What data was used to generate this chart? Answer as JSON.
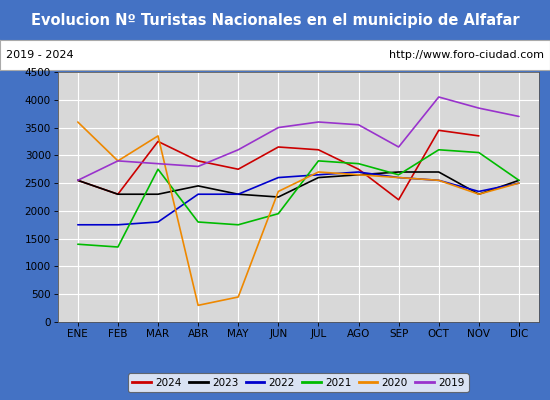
{
  "title": "Evolucion Nº Turistas Nacionales en el municipio de Alfafar",
  "subtitle_left": "2019 - 2024",
  "subtitle_right": "http://www.foro-ciudad.com",
  "ylim": [
    0,
    4500
  ],
  "yticks": [
    0,
    500,
    1000,
    1500,
    2000,
    2500,
    3000,
    3500,
    4000,
    4500
  ],
  "months": [
    "ENE",
    "FEB",
    "MAR",
    "ABR",
    "MAY",
    "JUN",
    "JUL",
    "AGO",
    "SEP",
    "OCT",
    "NOV",
    "DIC"
  ],
  "series": {
    "2024": {
      "color": "#cc0000",
      "data": [
        2550,
        2300,
        3250,
        2900,
        2750,
        3150,
        3100,
        2750,
        2200,
        3450,
        3350,
        null
      ]
    },
    "2023": {
      "color": "#000000",
      "data": [
        2550,
        2300,
        2300,
        2450,
        2300,
        2250,
        2600,
        2650,
        2700,
        2700,
        2300,
        2550
      ]
    },
    "2022": {
      "color": "#0000cc",
      "data": [
        1750,
        1750,
        1800,
        2300,
        2300,
        2600,
        2650,
        2700,
        2600,
        2550,
        2350,
        2500
      ]
    },
    "2021": {
      "color": "#00bb00",
      "data": [
        1400,
        1350,
        2750,
        1800,
        1750,
        1950,
        2900,
        2850,
        2650,
        3100,
        3050,
        2550
      ]
    },
    "2020": {
      "color": "#ee8800",
      "data": [
        3600,
        2900,
        3350,
        300,
        450,
        2350,
        2700,
        2650,
        2600,
        2550,
        2300,
        2500
      ]
    },
    "2019": {
      "color": "#9933cc",
      "data": [
        2550,
        2900,
        2850,
        2800,
        3100,
        3500,
        3600,
        3550,
        3150,
        4050,
        3850,
        3700
      ]
    }
  },
  "title_bg": "#4472c4",
  "title_color": "#ffffff",
  "subtitle_bg": "#ffffff",
  "subtitle_color": "#000000",
  "plot_bg": "#d8d8d8",
  "grid_color": "#ffffff",
  "legend_order": [
    "2024",
    "2023",
    "2022",
    "2021",
    "2020",
    "2019"
  ],
  "fig_width": 5.5,
  "fig_height": 4.0,
  "dpi": 100
}
